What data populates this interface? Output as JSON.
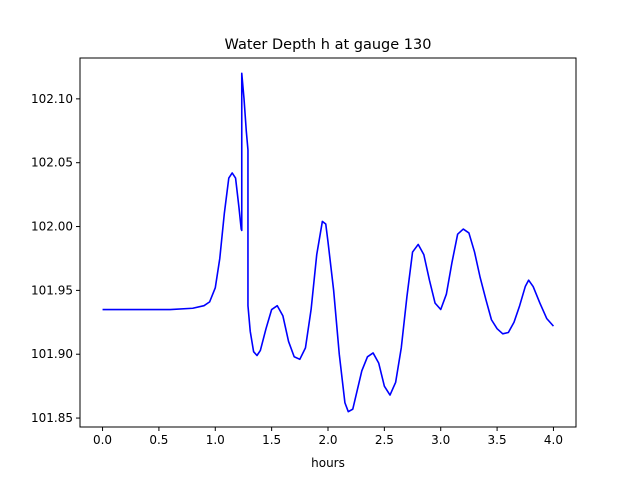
{
  "chart_data": {
    "type": "line",
    "title": "Water Depth h at gauge 130",
    "xlabel": "hours",
    "ylabel": "",
    "xlim": [
      -0.2,
      4.2
    ],
    "ylim": [
      101.843,
      102.132
    ],
    "xticks": [
      {
        "value": 0.0,
        "label": "0.0"
      },
      {
        "value": 0.5,
        "label": "0.5"
      },
      {
        "value": 1.0,
        "label": "1.0"
      },
      {
        "value": 1.5,
        "label": "1.5"
      },
      {
        "value": 2.0,
        "label": "2.0"
      },
      {
        "value": 2.5,
        "label": "2.5"
      },
      {
        "value": 3.0,
        "label": "3.0"
      },
      {
        "value": 3.5,
        "label": "3.5"
      },
      {
        "value": 4.0,
        "label": "4.0"
      }
    ],
    "yticks": [
      {
        "value": 101.85,
        "label": "101.85"
      },
      {
        "value": 101.9,
        "label": "101.90"
      },
      {
        "value": 101.95,
        "label": "101.95"
      },
      {
        "value": 102.0,
        "label": "102.00"
      },
      {
        "value": 102.05,
        "label": "102.05"
      },
      {
        "value": 102.1,
        "label": "102.10"
      }
    ],
    "grid": false,
    "series": [
      {
        "color": "#0000ff",
        "points": [
          [
            0.0,
            101.935
          ],
          [
            0.3,
            101.935
          ],
          [
            0.6,
            101.935
          ],
          [
            0.8,
            101.936
          ],
          [
            0.9,
            101.938
          ],
          [
            0.95,
            101.941
          ],
          [
            1.0,
            101.952
          ],
          [
            1.04,
            101.975
          ],
          [
            1.08,
            102.01
          ],
          [
            1.12,
            102.038
          ],
          [
            1.15,
            102.042
          ],
          [
            1.18,
            102.038
          ],
          [
            1.21,
            102.015
          ],
          [
            1.23,
            101.998
          ],
          [
            1.235,
            101.997
          ],
          [
            1.235,
            102.12
          ],
          [
            1.255,
            102.1
          ],
          [
            1.275,
            102.075
          ],
          [
            1.29,
            102.06
          ],
          [
            1.29,
            101.938
          ],
          [
            1.31,
            101.918
          ],
          [
            1.34,
            101.902
          ],
          [
            1.37,
            101.899
          ],
          [
            1.4,
            101.903
          ],
          [
            1.45,
            101.92
          ],
          [
            1.5,
            101.935
          ],
          [
            1.55,
            101.938
          ],
          [
            1.6,
            101.93
          ],
          [
            1.65,
            101.91
          ],
          [
            1.7,
            101.898
          ],
          [
            1.75,
            101.896
          ],
          [
            1.8,
            101.905
          ],
          [
            1.85,
            101.935
          ],
          [
            1.9,
            101.978
          ],
          [
            1.95,
            102.004
          ],
          [
            1.98,
            102.002
          ],
          [
            2.0,
            101.988
          ],
          [
            2.05,
            101.95
          ],
          [
            2.1,
            101.9
          ],
          [
            2.15,
            101.862
          ],
          [
            2.18,
            101.855
          ],
          [
            2.22,
            101.857
          ],
          [
            2.26,
            101.872
          ],
          [
            2.3,
            101.887
          ],
          [
            2.35,
            101.898
          ],
          [
            2.4,
            101.901
          ],
          [
            2.45,
            101.893
          ],
          [
            2.5,
            101.875
          ],
          [
            2.55,
            101.868
          ],
          [
            2.6,
            101.878
          ],
          [
            2.65,
            101.905
          ],
          [
            2.7,
            101.945
          ],
          [
            2.75,
            101.98
          ],
          [
            2.8,
            101.986
          ],
          [
            2.85,
            101.978
          ],
          [
            2.9,
            101.958
          ],
          [
            2.95,
            101.94
          ],
          [
            3.0,
            101.935
          ],
          [
            3.05,
            101.947
          ],
          [
            3.1,
            101.972
          ],
          [
            3.15,
            101.994
          ],
          [
            3.2,
            101.998
          ],
          [
            3.25,
            101.995
          ],
          [
            3.3,
            101.98
          ],
          [
            3.35,
            101.96
          ],
          [
            3.4,
            101.943
          ],
          [
            3.45,
            101.927
          ],
          [
            3.5,
            101.92
          ],
          [
            3.55,
            101.916
          ],
          [
            3.6,
            101.917
          ],
          [
            3.65,
            101.925
          ],
          [
            3.7,
            101.938
          ],
          [
            3.75,
            101.953
          ],
          [
            3.78,
            101.958
          ],
          [
            3.82,
            101.953
          ],
          [
            3.88,
            101.94
          ],
          [
            3.94,
            101.928
          ],
          [
            4.0,
            101.922
          ]
        ]
      }
    ]
  }
}
